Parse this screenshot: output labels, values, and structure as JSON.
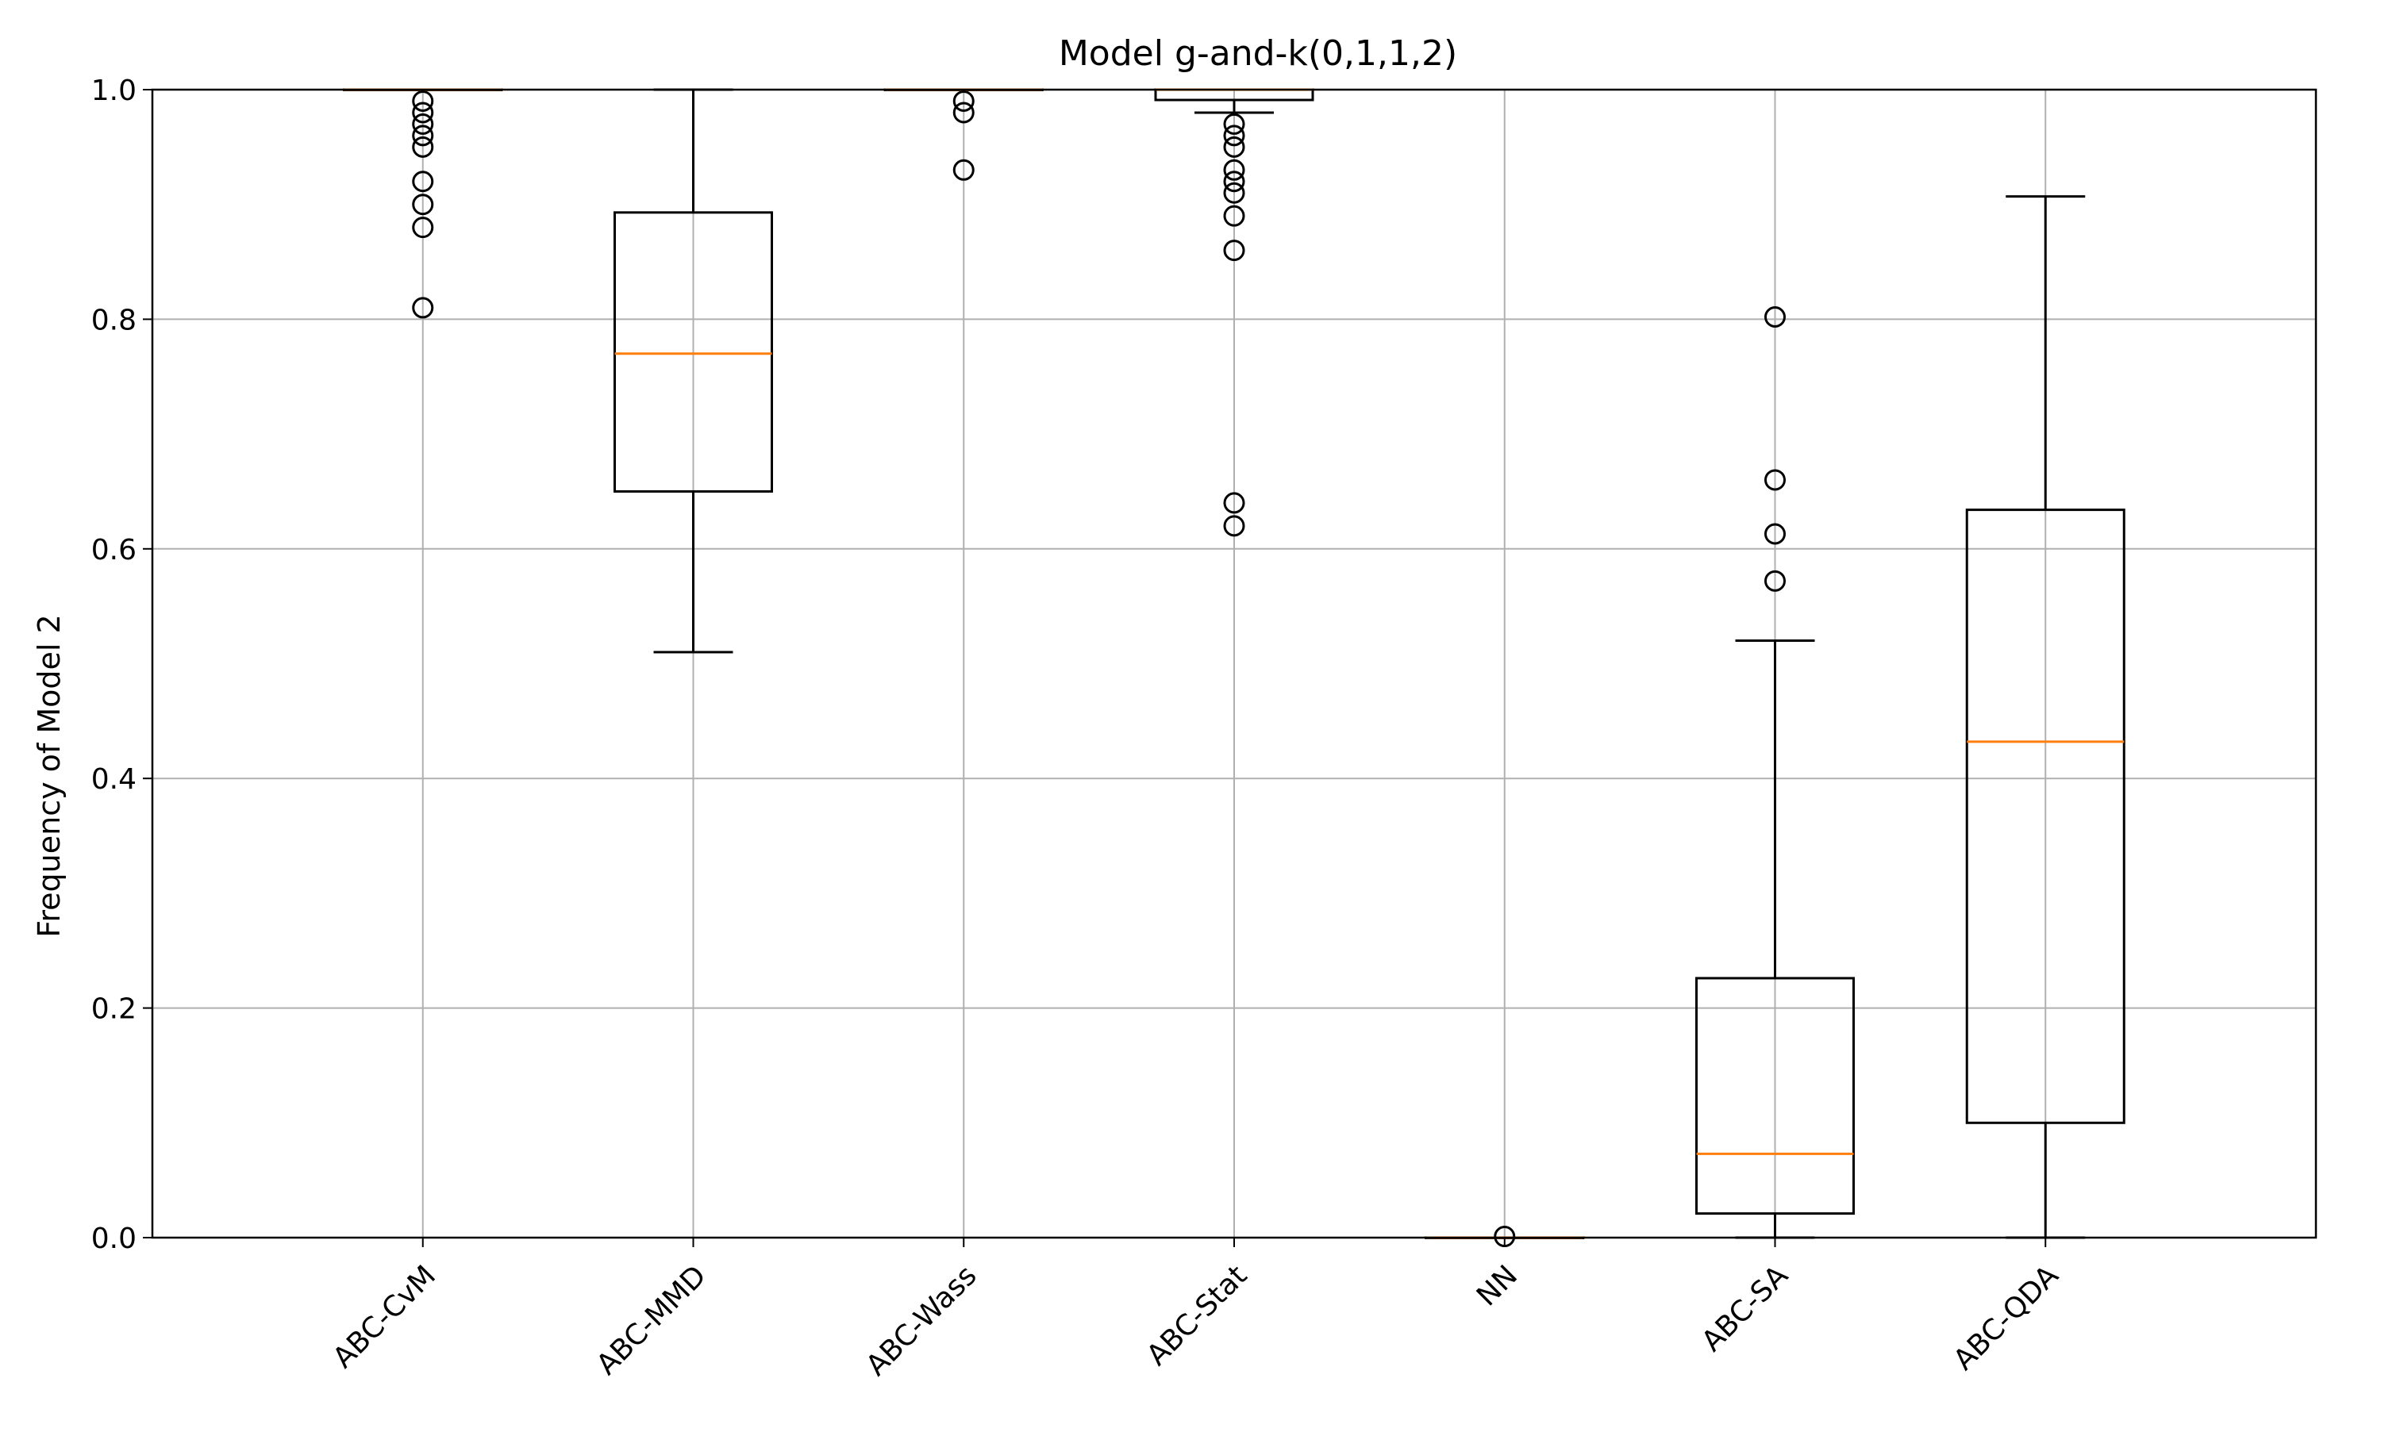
{
  "chart_data": {
    "type": "boxplot",
    "title": "Model g-and-k(0,1,1,2)",
    "xlabel": "",
    "ylabel": "Frequency of Model 2",
    "ylim": [
      0,
      1
    ],
    "yticks": [
      0.0,
      0.2,
      0.4,
      0.6,
      0.8,
      1.0
    ],
    "ytick_labels": [
      "0.0",
      "0.2",
      "0.4",
      "0.6",
      "0.8",
      "1.0"
    ],
    "grid": true,
    "categories": [
      "ABC-CvM",
      "ABC-MMD",
      "ABC-Wass",
      "ABC-Stat",
      "NN",
      "ABC-SA",
      "ABC-QDA"
    ],
    "boxes": [
      {
        "name": "ABC-CvM",
        "whisker_low": 1.0,
        "q1": 1.0,
        "median": 1.0,
        "q3": 1.0,
        "whisker_high": 1.0,
        "outliers": [
          0.99,
          0.98,
          0.97,
          0.96,
          0.95,
          0.92,
          0.9,
          0.88,
          0.81
        ]
      },
      {
        "name": "ABC-MMD",
        "whisker_low": 0.51,
        "q1": 0.65,
        "median": 0.77,
        "q3": 0.893,
        "whisker_high": 1.0,
        "outliers": []
      },
      {
        "name": "ABC-Wass",
        "whisker_low": 1.0,
        "q1": 1.0,
        "median": 1.0,
        "q3": 1.0,
        "whisker_high": 1.0,
        "outliers": [
          0.99,
          0.98,
          0.93
        ]
      },
      {
        "name": "ABC-Stat",
        "whisker_low": 0.98,
        "q1": 0.991,
        "median": 1.0,
        "q3": 1.0,
        "whisker_high": 1.0,
        "outliers": [
          0.97,
          0.96,
          0.95,
          0.93,
          0.92,
          0.91,
          0.89,
          0.86,
          0.64,
          0.62
        ]
      },
      {
        "name": "NN",
        "whisker_low": 0.0,
        "q1": 0.0,
        "median": 0.0,
        "q3": 0.0,
        "whisker_high": 0.0,
        "outliers": [
          0.001
        ]
      },
      {
        "name": "ABC-SA",
        "whisker_low": 0.0,
        "q1": 0.021,
        "median": 0.073,
        "q3": 0.226,
        "whisker_high": 0.52,
        "outliers": [
          0.572,
          0.613,
          0.66,
          0.802
        ]
      },
      {
        "name": "ABC-QDA",
        "whisker_low": 0.0,
        "q1": 0.1,
        "median": 0.432,
        "q3": 0.634,
        "whisker_high": 0.907,
        "outliers": []
      }
    ],
    "colors": {
      "box": "#000000",
      "median": "#ff7f0e",
      "grid": "#b0b0b0"
    }
  }
}
